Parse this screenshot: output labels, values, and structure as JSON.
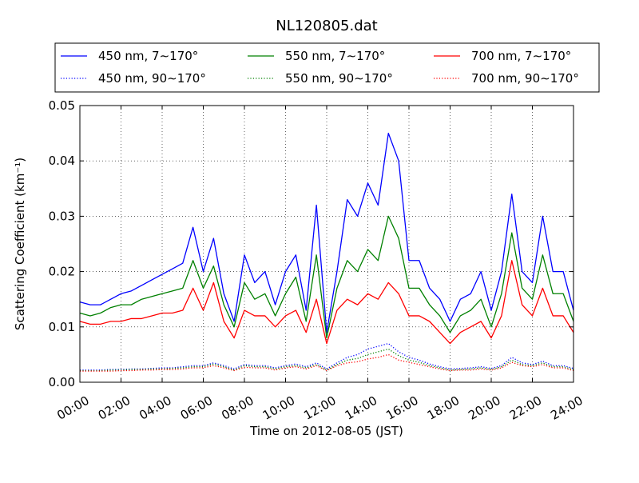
{
  "chart_data": {
    "type": "line",
    "title": "NL120805.dat",
    "xlabel": "Time on 2012-08-05 (JST)",
    "ylabel": "Scattering Coefficient (km⁻¹)",
    "xlim_hours": [
      0,
      24
    ],
    "ylim": [
      0.0,
      0.05
    ],
    "grid": true,
    "legend_position": "top",
    "x_ticks": [
      "00:00",
      "02:00",
      "04:00",
      "06:00",
      "08:00",
      "10:00",
      "12:00",
      "14:00",
      "16:00",
      "18:00",
      "20:00",
      "22:00",
      "24:00"
    ],
    "y_ticks": [
      "0.00",
      "0.01",
      "0.02",
      "0.03",
      "0.04",
      "0.05"
    ],
    "x_hours": [
      0,
      0.5,
      1,
      1.5,
      2,
      2.5,
      3,
      3.5,
      4,
      4.5,
      5,
      5.5,
      6,
      6.5,
      7,
      7.5,
      8,
      8.5,
      9,
      9.5,
      10,
      10.5,
      11,
      11.5,
      12,
      12.5,
      13,
      13.5,
      14,
      14.5,
      15,
      15.5,
      16,
      16.5,
      17,
      17.5,
      18,
      18.5,
      19,
      19.5,
      20,
      20.5,
      21,
      21.5,
      22,
      22.5,
      23,
      23.5,
      24
    ],
    "series": [
      {
        "name": "450 nm, 7∼170°",
        "color": "#0000ff",
        "style": "solid",
        "values": [
          0.0145,
          0.014,
          0.014,
          0.015,
          0.016,
          0.0165,
          0.0175,
          0.0185,
          0.0195,
          0.0205,
          0.0215,
          0.028,
          0.02,
          0.026,
          0.016,
          0.011,
          0.023,
          0.018,
          0.02,
          0.014,
          0.02,
          0.023,
          0.013,
          0.032,
          0.009,
          0.02,
          0.033,
          0.03,
          0.036,
          0.032,
          0.045,
          0.04,
          0.022,
          0.022,
          0.017,
          0.015,
          0.011,
          0.015,
          0.016,
          0.02,
          0.013,
          0.02,
          0.034,
          0.02,
          0.018,
          0.03,
          0.02,
          0.02,
          0.013
        ]
      },
      {
        "name": "550 nm, 7∼170°",
        "color": "#008000",
        "style": "solid",
        "values": [
          0.0125,
          0.012,
          0.0125,
          0.0135,
          0.014,
          0.014,
          0.015,
          0.0155,
          0.016,
          0.0165,
          0.017,
          0.022,
          0.017,
          0.021,
          0.014,
          0.01,
          0.018,
          0.015,
          0.016,
          0.012,
          0.016,
          0.019,
          0.011,
          0.023,
          0.008,
          0.017,
          0.022,
          0.02,
          0.024,
          0.022,
          0.03,
          0.026,
          0.017,
          0.017,
          0.014,
          0.012,
          0.009,
          0.012,
          0.013,
          0.015,
          0.01,
          0.016,
          0.027,
          0.017,
          0.015,
          0.023,
          0.016,
          0.016,
          0.011
        ]
      },
      {
        "name": "700 nm, 7∼170°",
        "color": "#ff0000",
        "style": "solid",
        "values": [
          0.011,
          0.0105,
          0.0105,
          0.011,
          0.011,
          0.0115,
          0.0115,
          0.012,
          0.0125,
          0.0125,
          0.013,
          0.017,
          0.013,
          0.018,
          0.011,
          0.008,
          0.013,
          0.012,
          0.012,
          0.01,
          0.012,
          0.013,
          0.009,
          0.015,
          0.007,
          0.013,
          0.015,
          0.014,
          0.016,
          0.015,
          0.018,
          0.016,
          0.012,
          0.012,
          0.011,
          0.009,
          0.007,
          0.009,
          0.01,
          0.011,
          0.008,
          0.012,
          0.022,
          0.014,
          0.012,
          0.017,
          0.012,
          0.012,
          0.009
        ]
      },
      {
        "name": "450 nm, 90∼170°",
        "color": "#0000ff",
        "style": "dotted",
        "values": [
          0.0022,
          0.0022,
          0.0022,
          0.0023,
          0.0023,
          0.0024,
          0.0024,
          0.0025,
          0.0026,
          0.0026,
          0.0028,
          0.003,
          0.003,
          0.0035,
          0.003,
          0.0024,
          0.0032,
          0.003,
          0.003,
          0.0026,
          0.003,
          0.0033,
          0.0028,
          0.0035,
          0.0024,
          0.0035,
          0.0045,
          0.005,
          0.006,
          0.0065,
          0.007,
          0.0055,
          0.0045,
          0.004,
          0.0033,
          0.0028,
          0.0024,
          0.0025,
          0.0026,
          0.0028,
          0.0025,
          0.003,
          0.0045,
          0.0035,
          0.0032,
          0.0038,
          0.003,
          0.003,
          0.0025
        ]
      },
      {
        "name": "550 nm, 90∼170°",
        "color": "#008000",
        "style": "dotted",
        "values": [
          0.0021,
          0.0021,
          0.0021,
          0.0022,
          0.0022,
          0.0023,
          0.0023,
          0.0024,
          0.0024,
          0.0025,
          0.0026,
          0.0028,
          0.0028,
          0.0033,
          0.0028,
          0.0022,
          0.003,
          0.0028,
          0.0028,
          0.0024,
          0.0028,
          0.003,
          0.0026,
          0.0032,
          0.0022,
          0.0032,
          0.004,
          0.0043,
          0.005,
          0.0055,
          0.006,
          0.0048,
          0.004,
          0.0036,
          0.003,
          0.0026,
          0.0022,
          0.0023,
          0.0024,
          0.0026,
          0.0023,
          0.0028,
          0.004,
          0.0032,
          0.003,
          0.0035,
          0.0028,
          0.0028,
          0.0023
        ]
      },
      {
        "name": "700 nm, 90∼170°",
        "color": "#ff0000",
        "style": "dotted",
        "values": [
          0.002,
          0.002,
          0.002,
          0.002,
          0.0021,
          0.0021,
          0.0022,
          0.0022,
          0.0023,
          0.0023,
          0.0024,
          0.0026,
          0.0026,
          0.003,
          0.0026,
          0.0021,
          0.0027,
          0.0026,
          0.0026,
          0.0022,
          0.0026,
          0.0028,
          0.0024,
          0.003,
          0.0021,
          0.003,
          0.0035,
          0.0037,
          0.0042,
          0.0045,
          0.005,
          0.004,
          0.0036,
          0.0032,
          0.0028,
          0.0024,
          0.0021,
          0.0022,
          0.0022,
          0.0024,
          0.0022,
          0.0026,
          0.0036,
          0.003,
          0.0028,
          0.0032,
          0.0026,
          0.0026,
          0.0021
        ]
      }
    ]
  }
}
